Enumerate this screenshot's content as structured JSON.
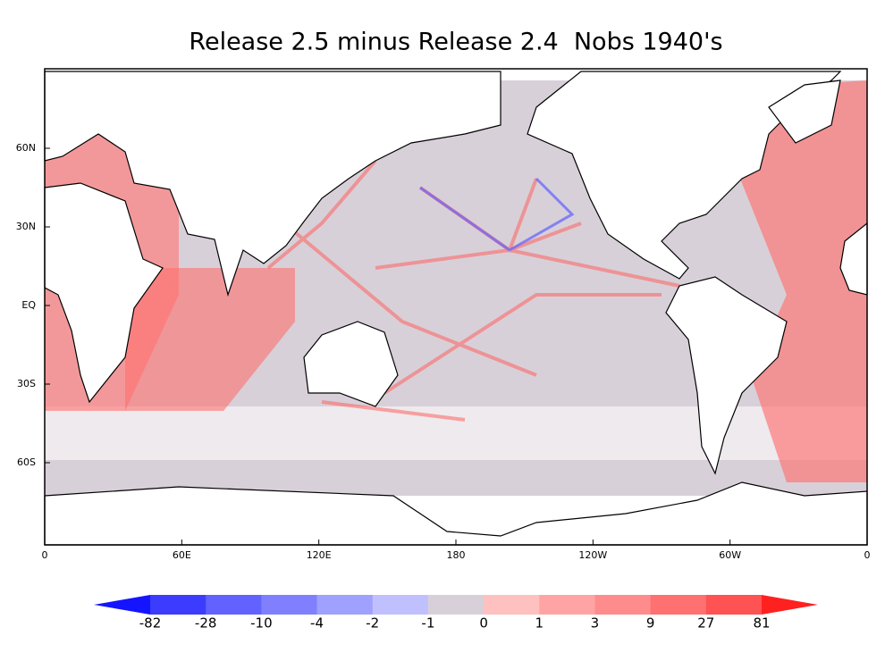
{
  "title": "Release 2.5 minus Release 2.4  Nobs 1940's",
  "map": {
    "lon_labels": [
      "0",
      "60E",
      "120E",
      "180",
      "120W",
      "60W",
      "0"
    ],
    "lat_labels": [
      "60N",
      "30N",
      "EQ",
      "30S",
      "60S"
    ]
  },
  "colorbar": {
    "levels": [
      -82,
      -28,
      -10,
      -4,
      -2,
      -1,
      0,
      1,
      3,
      9,
      27,
      81
    ],
    "colors": [
      "#1414ff",
      "#3c3cff",
      "#6262ff",
      "#8080ff",
      "#a0a0ff",
      "#c0c0ff",
      "#d8d0d8",
      "#ffc0c0",
      "#ffa4a4",
      "#ff8c8c",
      "#ff7070",
      "#ff5252",
      "#ff2020"
    ]
  }
}
